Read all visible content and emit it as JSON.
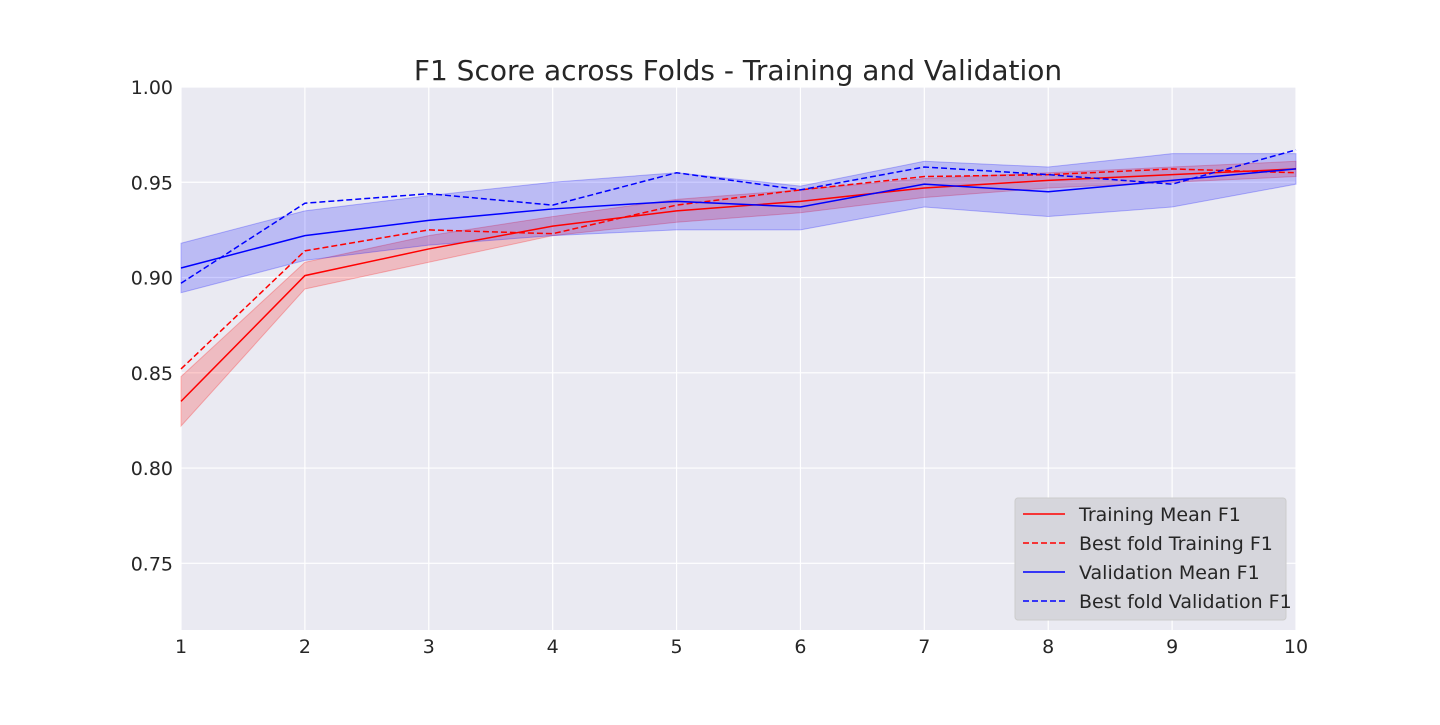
{
  "chart_data": {
    "type": "line",
    "title": "F1 Score across Folds - Training and Validation",
    "xlabel": "",
    "ylabel": "",
    "xlim": [
      1,
      10
    ],
    "ylim": [
      0.715,
      1.0
    ],
    "x": [
      1,
      2,
      3,
      4,
      5,
      6,
      7,
      8,
      9,
      10
    ],
    "xticks": [
      "1",
      "2",
      "3",
      "4",
      "5",
      "6",
      "7",
      "8",
      "9",
      "10"
    ],
    "yticks": [
      {
        "value": 0.75,
        "label": "0.75"
      },
      {
        "value": 0.8,
        "label": "0.80"
      },
      {
        "value": 0.85,
        "label": "0.85"
      },
      {
        "value": 0.9,
        "label": "0.90"
      },
      {
        "value": 0.95,
        "label": "0.95"
      },
      {
        "value": 1.0,
        "label": "1.00"
      }
    ],
    "grid": true,
    "legend_position": "lower-right",
    "series": [
      {
        "name": "Training Mean F1",
        "color": "#ff0000",
        "style": "solid",
        "values": [
          0.835,
          0.901,
          0.915,
          0.927,
          0.935,
          0.94,
          0.947,
          0.951,
          0.954,
          0.957
        ],
        "band_lower": [
          0.822,
          0.894,
          0.908,
          0.922,
          0.929,
          0.934,
          0.942,
          0.947,
          0.95,
          0.953
        ],
        "band_upper": [
          0.848,
          0.908,
          0.922,
          0.932,
          0.941,
          0.946,
          0.952,
          0.955,
          0.958,
          0.961
        ]
      },
      {
        "name": "Best fold Training F1",
        "color": "#ff0000",
        "style": "dashed",
        "values": [
          0.852,
          0.914,
          0.925,
          0.923,
          0.938,
          0.946,
          0.953,
          0.954,
          0.957,
          0.955
        ]
      },
      {
        "name": "Validation Mean F1",
        "color": "#0000ff",
        "style": "solid",
        "values": [
          0.905,
          0.922,
          0.93,
          0.936,
          0.94,
          0.937,
          0.949,
          0.945,
          0.951,
          0.957
        ],
        "band_lower": [
          0.892,
          0.909,
          0.917,
          0.922,
          0.925,
          0.925,
          0.937,
          0.932,
          0.937,
          0.949
        ],
        "band_upper": [
          0.918,
          0.935,
          0.943,
          0.95,
          0.955,
          0.948,
          0.961,
          0.958,
          0.965,
          0.965
        ]
      },
      {
        "name": "Best fold Validation F1",
        "color": "#0000ff",
        "style": "dashed",
        "values": [
          0.897,
          0.939,
          0.944,
          0.938,
          0.955,
          0.946,
          0.958,
          0.954,
          0.949,
          0.967
        ]
      }
    ]
  }
}
